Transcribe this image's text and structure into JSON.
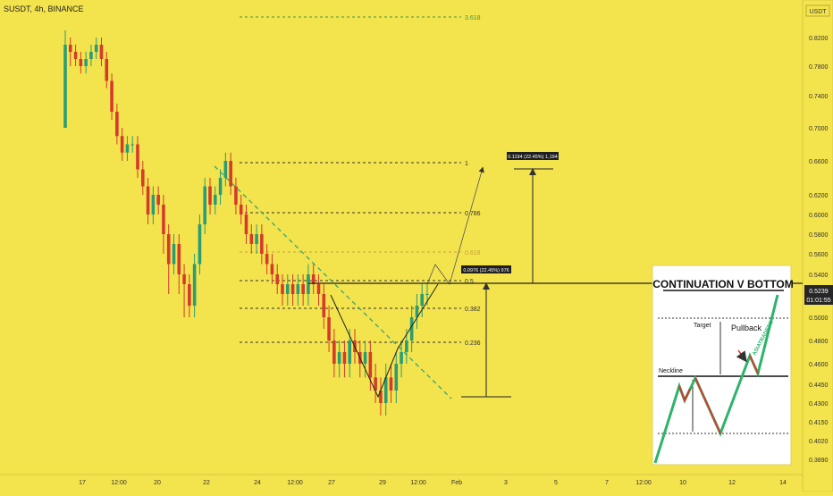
{
  "header": {
    "symbol": "SUSDT, 4h, BINANCE"
  },
  "price_axis": {
    "currency": "USDT",
    "labels": [
      "0.8200",
      "0.7800",
      "0.7400",
      "0.7000",
      "0.6600",
      "0.6200",
      "0.6000",
      "0.5800",
      "0.5600",
      "0.5400",
      "0.5200",
      "0.5000",
      "0.4800",
      "0.4600",
      "0.4450",
      "0.4300",
      "0.4150",
      "0.4020",
      "0.3890"
    ],
    "current_price": "0.5239",
    "countdown": "01:01:55",
    "current_color": "#262626"
  },
  "time_axis": {
    "labels": [
      "17",
      "12:00",
      "20",
      "22",
      "24",
      "12:00",
      "27",
      "29",
      "12:00",
      "Feb",
      "3",
      "5",
      "7",
      "12:00",
      "10",
      "12",
      "14"
    ]
  },
  "fibonacci": {
    "levels": [
      {
        "ratio": "3.618",
        "color": "#3f9a3f"
      },
      {
        "ratio": "1",
        "color": "#333333"
      },
      {
        "ratio": "0.786",
        "color": "#333333"
      },
      {
        "ratio": "0.618",
        "color": "#c5a43c"
      },
      {
        "ratio": "0.5",
        "color": "#333333"
      },
      {
        "ratio": "0.382",
        "color": "#333333"
      },
      {
        "ratio": "0.236",
        "color": "#333333"
      }
    ]
  },
  "annotations": {
    "measure_target": "0.1194 (22.45%) 1,194",
    "measure_neckline": "0.0976 (22.45%) 976"
  },
  "inset": {
    "title": "CONTINUATION V BOTTOM",
    "target_label": "Target",
    "pullback_label": "Pullback",
    "neckline_label": "Neckline",
    "brand": "ASIATRADERS",
    "line_color": "#2db36b"
  },
  "chart_data": {
    "type": "candlestick",
    "title": "SUSDT, 4h, BINANCE",
    "x_tick_labels": [
      "17",
      "12:00",
      "20",
      "22",
      "24",
      "12:00",
      "27",
      "29",
      "12:00",
      "Feb",
      "3",
      "5",
      "7",
      "12:00",
      "10",
      "12",
      "14"
    ],
    "y_tick_labels": [
      "0.8200",
      "0.7800",
      "0.7400",
      "0.7000",
      "0.6600",
      "0.6200",
      "0.6000",
      "0.5800",
      "0.5600",
      "0.5400",
      "0.5200",
      "0.5000",
      "0.4800",
      "0.4600",
      "0.4450",
      "0.4300",
      "0.4150",
      "0.4020",
      "0.3890"
    ],
    "series": [
      {
        "ohlc": [
          [
            0.7,
            0.81,
            0.83,
            0.7
          ],
          [
            0.81,
            0.8,
            0.82,
            0.78
          ],
          [
            0.8,
            0.79,
            0.81,
            0.78
          ],
          [
            0.79,
            0.78,
            0.8,
            0.77
          ],
          [
            0.78,
            0.79,
            0.8,
            0.77
          ],
          [
            0.79,
            0.8,
            0.81,
            0.78
          ],
          [
            0.8,
            0.81,
            0.82,
            0.79
          ],
          [
            0.81,
            0.79,
            0.82,
            0.78
          ],
          [
            0.79,
            0.76,
            0.8,
            0.75
          ],
          [
            0.76,
            0.72,
            0.77,
            0.71
          ],
          [
            0.72,
            0.69,
            0.73,
            0.68
          ],
          [
            0.69,
            0.67,
            0.7,
            0.66
          ],
          [
            0.67,
            0.68,
            0.69,
            0.66
          ],
          [
            0.68,
            0.68,
            0.69,
            0.67
          ],
          [
            0.68,
            0.65,
            0.69,
            0.64
          ],
          [
            0.65,
            0.63,
            0.66,
            0.62
          ],
          [
            0.63,
            0.6,
            0.64,
            0.59
          ],
          [
            0.6,
            0.62,
            0.63,
            0.59
          ],
          [
            0.62,
            0.61,
            0.63,
            0.6
          ],
          [
            0.61,
            0.58,
            0.62,
            0.56
          ],
          [
            0.58,
            0.55,
            0.59,
            0.52
          ],
          [
            0.55,
            0.57,
            0.58,
            0.54
          ],
          [
            0.57,
            0.54,
            0.58,
            0.52
          ],
          [
            0.54,
            0.53,
            0.55,
            0.5
          ],
          [
            0.53,
            0.51,
            0.54,
            0.5
          ],
          [
            0.51,
            0.55,
            0.56,
            0.5
          ],
          [
            0.55,
            0.59,
            0.6,
            0.54
          ],
          [
            0.59,
            0.63,
            0.64,
            0.58
          ],
          [
            0.63,
            0.61,
            0.64,
            0.6
          ],
          [
            0.61,
            0.62,
            0.63,
            0.6
          ],
          [
            0.62,
            0.64,
            0.65,
            0.61
          ],
          [
            0.64,
            0.66,
            0.67,
            0.63
          ],
          [
            0.66,
            0.63,
            0.67,
            0.62
          ],
          [
            0.63,
            0.61,
            0.64,
            0.6
          ],
          [
            0.61,
            0.6,
            0.62,
            0.59
          ],
          [
            0.6,
            0.58,
            0.61,
            0.57
          ],
          [
            0.58,
            0.57,
            0.59,
            0.56
          ],
          [
            0.57,
            0.58,
            0.59,
            0.56
          ],
          [
            0.58,
            0.56,
            0.59,
            0.55
          ],
          [
            0.56,
            0.55,
            0.57,
            0.54
          ],
          [
            0.55,
            0.54,
            0.56,
            0.53
          ],
          [
            0.54,
            0.53,
            0.55,
            0.52
          ],
          [
            0.53,
            0.52,
            0.54,
            0.51
          ],
          [
            0.52,
            0.53,
            0.54,
            0.51
          ],
          [
            0.53,
            0.52,
            0.54,
            0.51
          ],
          [
            0.52,
            0.53,
            0.54,
            0.51
          ],
          [
            0.53,
            0.52,
            0.54,
            0.51
          ],
          [
            0.52,
            0.54,
            0.55,
            0.51
          ],
          [
            0.54,
            0.53,
            0.55,
            0.52
          ],
          [
            0.53,
            0.52,
            0.54,
            0.51
          ],
          [
            0.52,
            0.5,
            0.53,
            0.49
          ],
          [
            0.5,
            0.48,
            0.51,
            0.47
          ],
          [
            0.48,
            0.46,
            0.49,
            0.45
          ],
          [
            0.46,
            0.47,
            0.48,
            0.45
          ],
          [
            0.47,
            0.46,
            0.48,
            0.45
          ],
          [
            0.46,
            0.48,
            0.49,
            0.45
          ],
          [
            0.48,
            0.47,
            0.49,
            0.46
          ],
          [
            0.47,
            0.46,
            0.48,
            0.45
          ],
          [
            0.46,
            0.47,
            0.48,
            0.45
          ],
          [
            0.47,
            0.45,
            0.48,
            0.44
          ],
          [
            0.45,
            0.44,
            0.46,
            0.43
          ],
          [
            0.44,
            0.43,
            0.45,
            0.42
          ],
          [
            0.43,
            0.45,
            0.46,
            0.42
          ],
          [
            0.45,
            0.44,
            0.46,
            0.43
          ],
          [
            0.44,
            0.46,
            0.47,
            0.43
          ],
          [
            0.46,
            0.47,
            0.48,
            0.45
          ],
          [
            0.47,
            0.48,
            0.49,
            0.46
          ],
          [
            0.48,
            0.5,
            0.51,
            0.47
          ],
          [
            0.5,
            0.51,
            0.52,
            0.49
          ],
          [
            0.51,
            0.52,
            0.53,
            0.5
          ],
          [
            0.52,
            0.52,
            0.53,
            0.51
          ]
        ]
      }
    ],
    "fib_levels": [
      "3.618",
      "1",
      "0.786",
      "0.618",
      "0.5",
      "0.382",
      "0.236"
    ],
    "up_color": "#2a9d76",
    "down_color": "#d63a2c"
  }
}
